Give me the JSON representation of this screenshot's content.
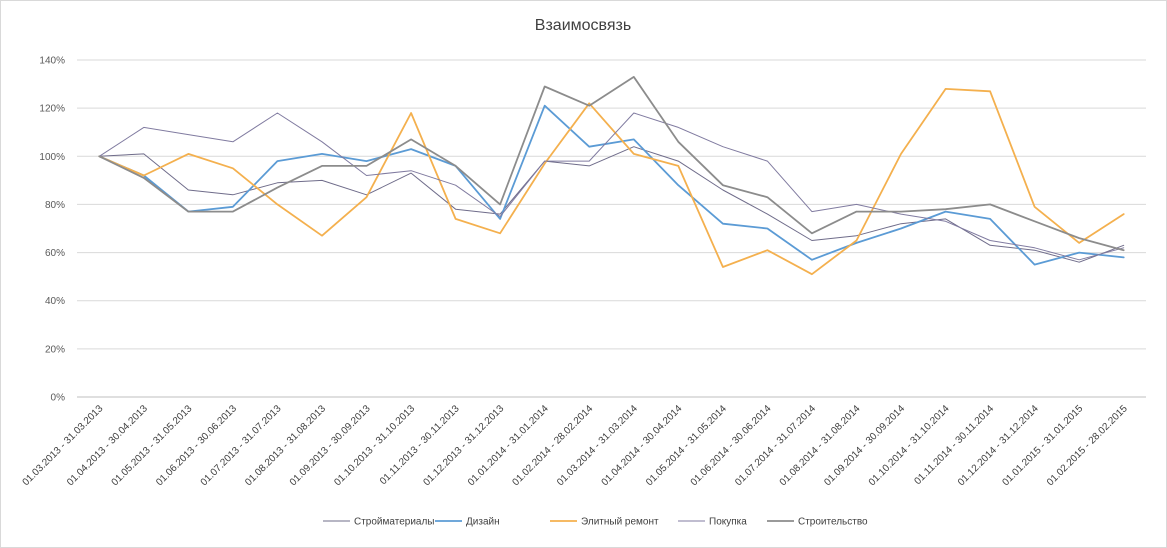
{
  "chart_data": {
    "type": "line",
    "title": "Взаимосвязь",
    "xlabel": "",
    "ylabel": "",
    "ylim": [
      0,
      140
    ],
    "yticks": [
      "0%",
      "20%",
      "40%",
      "60%",
      "80%",
      "100%",
      "120%",
      "140%"
    ],
    "grid": true,
    "legend": "bottom",
    "categories": [
      "01.03.2013 - 31.03.2013",
      "01.04.2013 - 30.04.2013",
      "01.05.2013 - 31.05.2013",
      "01.06.2013 - 30.06.2013",
      "01.07.2013 - 31.07.2013",
      "01.08.2013 - 31.08.2013",
      "01.09.2013 - 30.09.2013",
      "01.10.2013 - 31.10.2013",
      "01.11.2013 - 30.11.2013",
      "01.12.2013 - 31.12.2013",
      "01.01.2014 - 31.01.2014",
      "01.02.2014 - 28.02.2014",
      "01.03.2014 - 31.03.2014",
      "01.04.2014 - 30.04.2014",
      "01.05.2014 - 31.05.2014",
      "01.06.2014 - 30.06.2014",
      "01.07.2014 - 31.07.2014",
      "01.08.2014 - 31.08.2014",
      "01.09.2014 - 30.09.2014",
      "01.10.2014 - 31.10.2014",
      "01.11.2014 - 30.11.2014",
      "01.12.2014 - 31.12.2014",
      "01.01.2015 - 31.01.2015",
      "01.02.2015 - 28.02.2015"
    ],
    "series": [
      {
        "name": "Стройматериалы",
        "color": "#6f6c8a",
        "width": 1,
        "values": [
          100,
          101,
          86,
          84,
          89,
          90,
          84,
          93,
          78,
          76,
          98,
          96,
          104,
          98,
          86,
          76,
          65,
          67,
          72,
          74,
          63,
          61,
          56,
          63
        ]
      },
      {
        "name": "Дизайн",
        "color": "#5b9bd5",
        "width": 1.8,
        "values": [
          100,
          92,
          77,
          79,
          98,
          101,
          98,
          103,
          96,
          74,
          121,
          104,
          107,
          88,
          72,
          70,
          57,
          64,
          70,
          77,
          74,
          55,
          60,
          58
        ]
      },
      {
        "name": "Элитный ремонт",
        "color": "#f4b04e",
        "width": 1.8,
        "values": [
          100,
          92,
          101,
          95,
          80,
          67,
          83,
          118,
          74,
          68,
          97,
          122,
          101,
          96,
          54,
          61,
          51,
          65,
          101,
          128,
          127,
          79,
          64,
          76
        ]
      },
      {
        "name": "Покупка",
        "color": "#807ba0",
        "width": 1,
        "values": [
          100,
          112,
          109,
          106,
          118,
          106,
          92,
          94,
          88,
          75,
          98,
          98,
          118,
          112,
          104,
          98,
          77,
          80,
          76,
          73,
          65,
          62,
          57,
          62
        ]
      },
      {
        "name": "Строительство",
        "color": "#8c8c8c",
        "width": 1.8,
        "values": [
          100,
          91,
          77,
          77,
          87,
          96,
          96,
          107,
          96,
          80,
          129,
          121,
          133,
          106,
          88,
          83,
          68,
          77,
          77,
          78,
          80,
          73,
          66,
          61
        ]
      }
    ]
  }
}
